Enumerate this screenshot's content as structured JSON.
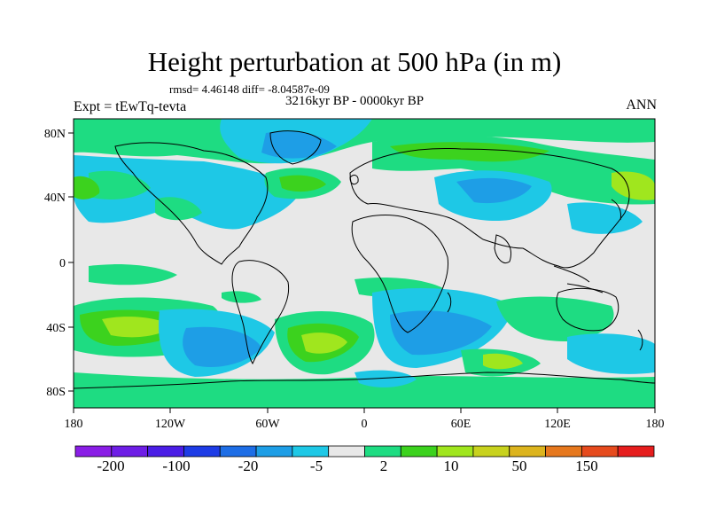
{
  "title": "Height perturbation at 500 hPa (in m)",
  "stats": "rmsd= 4.46148 diff= -8.04587e-09",
  "period": "3216kyr BP - 0000kyr BP",
  "experiment": "Expt = tEwTq-tevta",
  "season": "ANN",
  "lat_labels": [
    "80N",
    "40N",
    "0",
    "40S",
    "80S"
  ],
  "lon_labels": [
    "180",
    "120W",
    "60W",
    "0",
    "60E",
    "120E",
    "180"
  ],
  "colorbar": {
    "labels": [
      "-200",
      "-100",
      "-20",
      "-5",
      "2",
      "10",
      "50",
      "150"
    ],
    "colors": [
      "#8a1ee6",
      "#6e1ee6",
      "#4b1ee6",
      "#1e3ce6",
      "#1e6ee6",
      "#1e9ee6",
      "#1ec8e6",
      "#e8e8e8",
      "#1edc82",
      "#3cd21e",
      "#a0e61e",
      "#c8d21e",
      "#dcb41e",
      "#e6781e",
      "#e64b1e",
      "#e61e1e"
    ]
  },
  "map_colors": {
    "background": "#e8e8e8",
    "light_blue": "#1ec8e6",
    "mid_blue": "#1e9ee6",
    "teal_green": "#1edc82",
    "green": "#3cd21e",
    "yellow_green": "#a0e61e"
  }
}
